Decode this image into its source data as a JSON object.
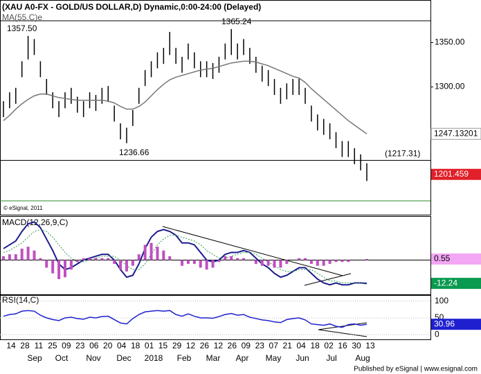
{
  "chart_data": [
    {
      "type": "ohlc",
      "title": "(XAU A0-FX - GOLD/US DOLLAR,D) Dynamic,0:00-24:00 (Delayed)",
      "high": [
        1284,
        1294,
        1299,
        1329,
        1357.5,
        1354,
        1329,
        1309,
        1294,
        1284,
        1294,
        1299,
        1289,
        1284,
        1294,
        1291,
        1299,
        1301,
        1279,
        1259,
        1254,
        1274,
        1299,
        1319,
        1329,
        1339,
        1344,
        1362,
        1344,
        1334,
        1349,
        1339,
        1329,
        1329,
        1327,
        1334,
        1349,
        1365.24,
        1349,
        1354,
        1344,
        1334,
        1324,
        1319,
        1309,
        1299,
        1304,
        1309,
        1309,
        1299,
        1279,
        1269,
        1264,
        1259,
        1249,
        1239,
        1239,
        1231,
        1224,
        1214
      ],
      "low": [
        1266,
        1276,
        1281,
        1311,
        1331,
        1336,
        1311,
        1291,
        1276,
        1266,
        1276,
        1281,
        1271,
        1266,
        1276,
        1273,
        1281,
        1283,
        1261,
        1241,
        1236.66,
        1256,
        1281,
        1301,
        1311,
        1321,
        1326,
        1336,
        1326,
        1316,
        1331,
        1321,
        1311,
        1311,
        1309,
        1316,
        1331,
        1336,
        1331,
        1336,
        1326,
        1316,
        1306,
        1301,
        1291,
        1281,
        1286,
        1291,
        1291,
        1281,
        1261,
        1251,
        1246,
        1241,
        1231,
        1221,
        1221,
        1213,
        1206,
        1194
      ],
      "color": "#000000",
      "ma": {
        "name": "MA(55,C)e",
        "color": "#777777",
        "values": [
          1262,
          1268,
          1275,
          1281,
          1286,
          1290,
          1292,
          1292,
          1290,
          1288,
          1287,
          1286,
          1285,
          1285,
          1285,
          1285,
          1285,
          1284,
          1282,
          1278,
          1275,
          1275,
          1278,
          1283,
          1290,
          1297,
          1303,
          1308,
          1311,
          1313,
          1315,
          1317,
          1319,
          1320,
          1321,
          1323,
          1325,
          1327,
          1328,
          1329,
          1329,
          1328,
          1326,
          1324,
          1321,
          1318,
          1315,
          1312,
          1310,
          1305,
          1298,
          1292,
          1286,
          1280,
          1274,
          1268,
          1262,
          1257,
          1252,
          1247.13201
        ]
      },
      "last_price": 1201.459,
      "ylim": [
        1156,
        1398
      ],
      "yticks": [
        {
          "value": 1350,
          "label": "1350.00"
        },
        {
          "value": 1300,
          "label": "1300.00"
        }
      ],
      "annotations": [
        {
          "value": 1357.5,
          "label": "1357.50"
        },
        {
          "value": 1365.24,
          "label": "1365.24"
        },
        {
          "value": 1236.66,
          "label": "1236.66"
        }
      ],
      "level": {
        "value": 1217.31,
        "label": "(1217.31)"
      },
      "copyright": "© eSignal, 2011"
    },
    {
      "type": "macd",
      "title": "MACD(12,26,9,C)",
      "ylim": [
        -18,
        22.7
      ],
      "series": [
        {
          "color": "#1a1a8c",
          "style": "line",
          "values": [
            6,
            8,
            10,
            15,
            19,
            20,
            17,
            11,
            5,
            -2,
            -5,
            -4,
            -2,
            0,
            1,
            2,
            3,
            3,
            0,
            -5,
            -9,
            -8,
            -2,
            6,
            12,
            15,
            16,
            15,
            13,
            9,
            9,
            8,
            4,
            0,
            -1,
            0,
            3,
            4,
            4,
            5,
            4,
            1,
            -2,
            -4,
            -7,
            -9,
            -8,
            -6,
            -4,
            -4,
            -7,
            -10,
            -12,
            -13,
            -12,
            -13,
            -13,
            -12,
            -12,
            -12.24
          ]
        },
        {
          "color": "#2a9a4a",
          "style": "dotted",
          "values": [
            4,
            5,
            7,
            9,
            12,
            15,
            16,
            15,
            12,
            8,
            4,
            1,
            -1,
            -1,
            0,
            1,
            2,
            2,
            2,
            0,
            -3,
            -5,
            -5,
            -2,
            3,
            8,
            11,
            13,
            13,
            12,
            11,
            10,
            8,
            5,
            3,
            1,
            1,
            2,
            3,
            4,
            4,
            3,
            1,
            -1,
            -3,
            -5,
            -6,
            -6,
            -5,
            -5,
            -5,
            -7,
            -9,
            -11,
            -11,
            -12,
            -12,
            -12,
            -12,
            -12.79
          ]
        },
        {
          "color": "#c050c0",
          "style": "histogram",
          "values": [
            2,
            3,
            3,
            6,
            7,
            5,
            1,
            -4,
            -7,
            -10,
            -9,
            -5,
            -1,
            1,
            1,
            1,
            1,
            1,
            -2,
            -5,
            -6,
            -3,
            3,
            8,
            9,
            7,
            5,
            2,
            0,
            -3,
            -2,
            -2,
            -4,
            -5,
            -4,
            -1,
            2,
            2,
            1,
            1,
            0,
            -2,
            -3,
            -3,
            -4,
            -4,
            -2,
            0,
            1,
            1,
            -2,
            -3,
            -3,
            -2,
            -1,
            -1,
            -1,
            0,
            0,
            0.55
          ]
        }
      ]
    },
    {
      "type": "line",
      "title": "RSI(14,C)",
      "ylim": [
        -14,
        116
      ],
      "yticks": [
        0,
        50,
        100
      ],
      "series": [
        {
          "color": "#1f1fd0",
          "values": [
            55,
            60,
            62,
            70,
            72,
            70,
            58,
            50,
            45,
            42,
            50,
            52,
            48,
            46,
            52,
            50,
            54,
            55,
            45,
            35,
            32,
            48,
            60,
            68,
            70,
            72,
            70,
            72,
            60,
            55,
            62,
            55,
            50,
            50,
            49,
            54,
            60,
            63,
            58,
            60,
            52,
            48,
            44,
            42,
            38,
            36,
            45,
            48,
            50,
            44,
            32,
            30,
            28,
            32,
            25,
            22,
            30,
            32,
            28,
            30.96
          ]
        }
      ],
      "date_labels": [
        "14",
        "28",
        "11",
        "25",
        "09",
        "23",
        "06",
        "20",
        "04",
        "18",
        "01",
        "15",
        "29",
        "12",
        "26",
        "12",
        "26",
        "09",
        "23",
        "07",
        "21",
        "04",
        "18",
        "02",
        "16",
        "30",
        "13"
      ],
      "month_labels": [
        "Sep",
        "Oct",
        "Nov",
        "Dec",
        "2018",
        "Feb",
        "Mar",
        "Apr",
        "May",
        "Jun",
        "Jul",
        "Aug"
      ]
    }
  ],
  "footer": "Published by eSignal | www.esignal.com"
}
